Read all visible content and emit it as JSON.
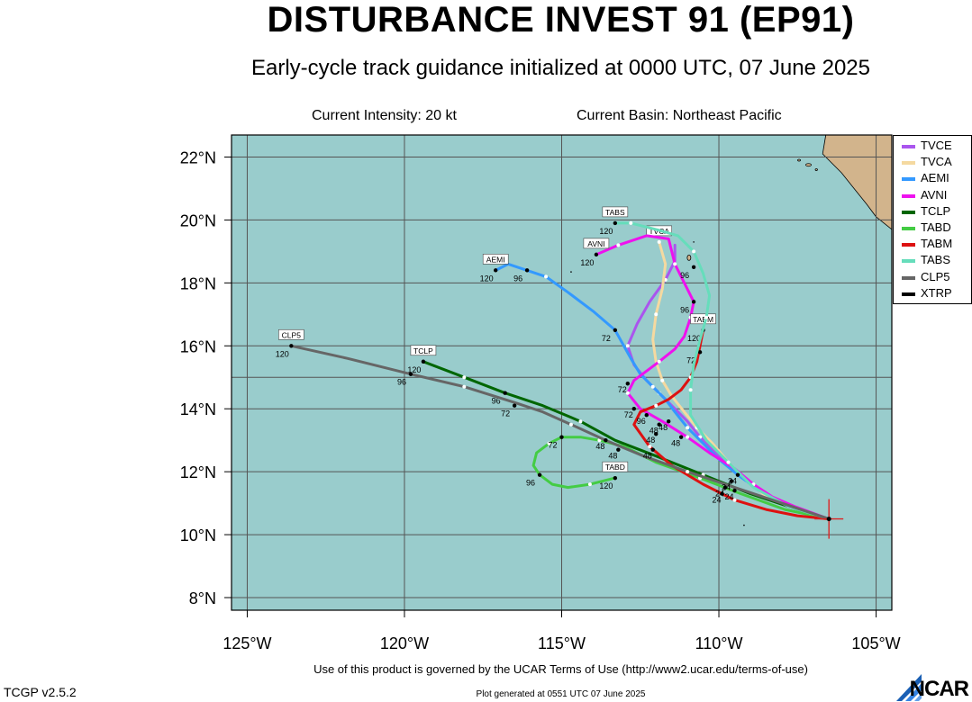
{
  "header": {
    "title": "DISTURBANCE INVEST 91 (EP91)",
    "subtitle": "Early-cycle track guidance initialized at 0000 UTC, 07 June 2025",
    "intensity": "Current Intensity: 20 kt",
    "basin": "Current Basin: Northeast Pacific"
  },
  "footer": {
    "terms": "Use of this product is governed by the UCAR Terms of Use (http://www2.ucar.edu/terms-of-use)",
    "version": "TCGP v2.5.2",
    "generated": "Plot generated at 0551 UTC   07 June 2025",
    "logo": "NCAR"
  },
  "colors": {
    "ocean": "#99CCCC",
    "land": "#D2B48C",
    "grid": "#555555"
  },
  "chart_data": {
    "type": "map-tracks",
    "xlim": [
      -125.5,
      -104.5
    ],
    "ylim": [
      7.6,
      22.7
    ],
    "x_ticks": [
      {
        "value": -125,
        "label": "125°W"
      },
      {
        "value": -120,
        "label": "120°W"
      },
      {
        "value": -115,
        "label": "115°W"
      },
      {
        "value": -110,
        "label": "110°W"
      },
      {
        "value": -105,
        "label": "105°W"
      }
    ],
    "y_ticks": [
      {
        "value": 8,
        "label": "8°N"
      },
      {
        "value": 10,
        "label": "10°N"
      },
      {
        "value": 12,
        "label": "12°N"
      },
      {
        "value": 14,
        "label": "14°N"
      },
      {
        "value": 16,
        "label": "16°N"
      },
      {
        "value": 18,
        "label": "18°N"
      },
      {
        "value": 20,
        "label": "20°N"
      },
      {
        "value": 22,
        "label": "22°N"
      }
    ],
    "extra_grid_lat": 15,
    "current_position": {
      "lon": -106.5,
      "lat": 10.5
    },
    "series": [
      {
        "name": "TVCE",
        "color": "#AA55EE",
        "points": [
          [
            -106.5,
            10.5
          ],
          [
            -107.8,
            10.9
          ],
          [
            -108.6,
            11.3
          ],
          [
            -109.1,
            11.7
          ],
          [
            -109.6,
            12.1
          ],
          [
            -110.1,
            12.6
          ],
          [
            -110.6,
            13.1
          ],
          [
            -111.0,
            13.6
          ],
          [
            -111.4,
            14.0
          ],
          [
            -111.9,
            14.5
          ],
          [
            -112.3,
            14.9
          ],
          [
            -112.7,
            15.4
          ],
          [
            -112.9,
            16.0
          ],
          [
            -112.6,
            16.7
          ],
          [
            -112.2,
            17.4
          ],
          [
            -111.7,
            18.1
          ],
          [
            -111.4,
            18.7
          ],
          [
            -111.4,
            19.2
          ]
        ],
        "hour_labels": [],
        "end_label": ""
      },
      {
        "name": "TVCA",
        "color": "#F5D9A0",
        "points": [
          [
            -106.5,
            10.5
          ],
          [
            -107.8,
            10.9
          ],
          [
            -108.6,
            11.3
          ],
          [
            -109.2,
            11.8
          ],
          [
            -109.7,
            12.3
          ],
          [
            -110.2,
            12.9
          ],
          [
            -110.7,
            13.4
          ],
          [
            -111.1,
            13.9
          ],
          [
            -111.5,
            14.4
          ],
          [
            -111.8,
            14.9
          ],
          [
            -112.0,
            15.5
          ],
          [
            -112.1,
            16.2
          ],
          [
            -112.0,
            17.0
          ],
          [
            -111.8,
            17.8
          ],
          [
            -111.7,
            18.6
          ],
          [
            -111.9,
            19.3
          ]
        ],
        "hour_labels": [],
        "end_label": "TVCA"
      },
      {
        "name": "AEMI",
        "color": "#3399FF",
        "points": [
          [
            -106.5,
            10.5
          ],
          [
            -107.8,
            10.9
          ],
          [
            -108.7,
            11.4
          ],
          [
            -109.4,
            11.9
          ],
          [
            -110.0,
            12.4
          ],
          [
            -110.5,
            12.9
          ],
          [
            -111.0,
            13.4
          ],
          [
            -111.4,
            13.9
          ],
          [
            -111.7,
            14.3
          ],
          [
            -112.1,
            14.7
          ],
          [
            -112.5,
            15.1
          ],
          [
            -112.8,
            15.6
          ],
          [
            -113.3,
            16.5
          ],
          [
            -114.0,
            17.1
          ],
          [
            -114.8,
            17.7
          ],
          [
            -115.5,
            18.2
          ],
          [
            -116.1,
            18.4
          ],
          [
            -116.7,
            18.6
          ],
          [
            -117.1,
            18.4
          ]
        ],
        "hour_labels": [
          {
            "lon": -113.3,
            "lat": 16.5,
            "label": "72"
          },
          {
            "lon": -116.1,
            "lat": 18.4,
            "label": "96"
          },
          {
            "lon": -117.1,
            "lat": 18.4,
            "label": "120"
          }
        ],
        "end_label": "AEMI"
      },
      {
        "name": "AVNI",
        "color": "#EE11EE",
        "points": [
          [
            -106.5,
            10.5
          ],
          [
            -107.6,
            10.9
          ],
          [
            -108.3,
            11.2
          ],
          [
            -108.9,
            11.6
          ],
          [
            -109.5,
            12.1
          ],
          [
            -110.3,
            12.6
          ],
          [
            -111.0,
            13.1
          ],
          [
            -111.8,
            13.6
          ],
          [
            -112.5,
            14.0
          ],
          [
            -112.9,
            14.5
          ],
          [
            -112.7,
            14.9
          ],
          [
            -112.3,
            15.2
          ],
          [
            -111.9,
            15.5
          ],
          [
            -111.4,
            15.9
          ],
          [
            -111.1,
            16.3
          ],
          [
            -110.9,
            16.9
          ],
          [
            -110.8,
            17.4
          ],
          [
            -111.1,
            18.0
          ],
          [
            -111.4,
            18.6
          ],
          [
            -111.6,
            19.4
          ],
          [
            -112.3,
            19.5
          ],
          [
            -113.2,
            19.2
          ],
          [
            -113.9,
            18.9
          ]
        ],
        "hour_labels": [
          {
            "lon": -110.8,
            "lat": 17.4,
            "label": "96"
          },
          {
            "lon": -113.9,
            "lat": 18.9,
            "label": "120"
          }
        ],
        "end_label": "AVNI"
      },
      {
        "name": "TCLP",
        "color": "#006600",
        "points": [
          [
            -106.5,
            10.5
          ],
          [
            -107.8,
            10.9
          ],
          [
            -109.0,
            11.3
          ],
          [
            -110.5,
            11.9
          ],
          [
            -112.0,
            12.5
          ],
          [
            -113.3,
            13.0
          ],
          [
            -114.4,
            13.6
          ],
          [
            -115.6,
            14.1
          ],
          [
            -116.8,
            14.5
          ],
          [
            -118.1,
            15.0
          ],
          [
            -119.4,
            15.5
          ]
        ],
        "hour_labels": [
          {
            "lon": -116.8,
            "lat": 14.5,
            "label": "96"
          },
          {
            "lon": -119.4,
            "lat": 15.5,
            "label": "120"
          }
        ],
        "end_label": "TCLP"
      },
      {
        "name": "TABD",
        "color": "#44CC44",
        "points": [
          [
            -106.5,
            10.5
          ],
          [
            -107.9,
            10.8
          ],
          [
            -109.3,
            11.3
          ],
          [
            -110.6,
            11.8
          ],
          [
            -112.0,
            12.3
          ],
          [
            -113.0,
            12.8
          ],
          [
            -113.8,
            13.0
          ],
          [
            -114.4,
            13.1
          ],
          [
            -115.0,
            13.1
          ],
          [
            -115.4,
            12.9
          ],
          [
            -115.8,
            12.6
          ],
          [
            -115.9,
            12.2
          ],
          [
            -115.7,
            11.9
          ],
          [
            -115.3,
            11.6
          ],
          [
            -114.8,
            11.5
          ],
          [
            -114.1,
            11.6
          ],
          [
            -113.3,
            11.8
          ]
        ],
        "hour_labels": [
          {
            "lon": -115.0,
            "lat": 13.1,
            "label": "72"
          },
          {
            "lon": -115.7,
            "lat": 11.9,
            "label": "96"
          },
          {
            "lon": -113.3,
            "lat": 11.8,
            "label": "120"
          }
        ],
        "end_label": "TABD"
      },
      {
        "name": "TABM",
        "color": "#DD1111",
        "points": [
          [
            -106.5,
            10.5
          ],
          [
            -107.5,
            10.6
          ],
          [
            -108.5,
            10.8
          ],
          [
            -109.5,
            11.1
          ],
          [
            -110.5,
            11.6
          ],
          [
            -111.5,
            12.2
          ],
          [
            -112.2,
            12.8
          ],
          [
            -112.7,
            13.5
          ],
          [
            -112.5,
            13.9
          ],
          [
            -112.0,
            14.1
          ],
          [
            -111.6,
            14.3
          ],
          [
            -111.2,
            14.6
          ],
          [
            -110.9,
            15.0
          ],
          [
            -110.7,
            15.5
          ],
          [
            -110.6,
            16.0
          ],
          [
            -110.5,
            16.5
          ]
        ],
        "hour_labels": [
          {
            "lon": -110.6,
            "lat": 15.8,
            "label": "72"
          },
          {
            "lon": -110.5,
            "lat": 16.5,
            "label": "120"
          }
        ],
        "end_label": "TABM"
      },
      {
        "name": "TABS",
        "color": "#66DDBB",
        "points": [
          [
            -106.5,
            10.5
          ],
          [
            -107.8,
            10.9
          ],
          [
            -108.9,
            11.5
          ],
          [
            -109.7,
            12.3
          ],
          [
            -110.4,
            13.0
          ],
          [
            -110.9,
            13.8
          ],
          [
            -110.9,
            14.6
          ],
          [
            -110.8,
            15.4
          ],
          [
            -110.6,
            16.2
          ],
          [
            -110.4,
            16.9
          ],
          [
            -110.3,
            17.6
          ],
          [
            -110.5,
            18.3
          ],
          [
            -110.8,
            19.0
          ],
          [
            -111.3,
            19.5
          ],
          [
            -112.0,
            19.7
          ],
          [
            -112.8,
            19.9
          ],
          [
            -113.3,
            19.9
          ]
        ],
        "hour_labels": [
          {
            "lon": -110.8,
            "lat": 18.5,
            "label": "96"
          },
          {
            "lon": -113.3,
            "lat": 19.9,
            "label": "120"
          }
        ],
        "end_label": "TABS"
      },
      {
        "name": "CLP5",
        "color": "#666666",
        "points": [
          [
            -106.5,
            10.5
          ],
          [
            -108.0,
            11.0
          ],
          [
            -109.5,
            11.5
          ],
          [
            -111.0,
            12.0
          ],
          [
            -112.4,
            12.5
          ],
          [
            -113.6,
            13.0
          ],
          [
            -114.7,
            13.5
          ],
          [
            -115.6,
            13.9
          ],
          [
            -116.5,
            14.2
          ],
          [
            -118.1,
            14.7
          ],
          [
            -119.8,
            15.1
          ],
          [
            -121.8,
            15.6
          ],
          [
            -123.6,
            16.0
          ]
        ],
        "hour_labels": [
          {
            "lon": -116.5,
            "lat": 14.1,
            "label": "72"
          },
          {
            "lon": -119.8,
            "lat": 15.1,
            "label": "96"
          },
          {
            "lon": -123.6,
            "lat": 16.0,
            "label": "120"
          }
        ],
        "end_label": "CLP5"
      },
      {
        "name": "XTRP",
        "color": "#000000",
        "points": [],
        "hour_labels": [],
        "end_label": ""
      }
    ],
    "misc_labels": [
      {
        "lon": -112.9,
        "lat": 14.8,
        "label": "72"
      },
      {
        "lon": -112.7,
        "lat": 14.0,
        "label": "72"
      },
      {
        "lon": -112.3,
        "lat": 13.8,
        "label": "96"
      },
      {
        "lon": -111.9,
        "lat": 13.5,
        "label": "48"
      },
      {
        "lon": -111.6,
        "lat": 13.6,
        "label": "48"
      },
      {
        "lon": -112.0,
        "lat": 13.2,
        "label": "48"
      },
      {
        "lon": -111.2,
        "lat": 13.1,
        "label": "48"
      },
      {
        "lon": -113.6,
        "lat": 13.0,
        "label": "48"
      },
      {
        "lon": -113.2,
        "lat": 12.7,
        "label": "48"
      },
      {
        "lon": -112.1,
        "lat": 12.7,
        "label": "48"
      },
      {
        "lon": -109.4,
        "lat": 11.9,
        "label": "24"
      },
      {
        "lon": -109.6,
        "lat": 11.7,
        "label": "24"
      },
      {
        "lon": -109.8,
        "lat": 11.5,
        "label": "24"
      },
      {
        "lon": -109.9,
        "lat": 11.3,
        "label": "24"
      },
      {
        "lon": -109.5,
        "lat": 11.4,
        "label": "24"
      }
    ]
  }
}
